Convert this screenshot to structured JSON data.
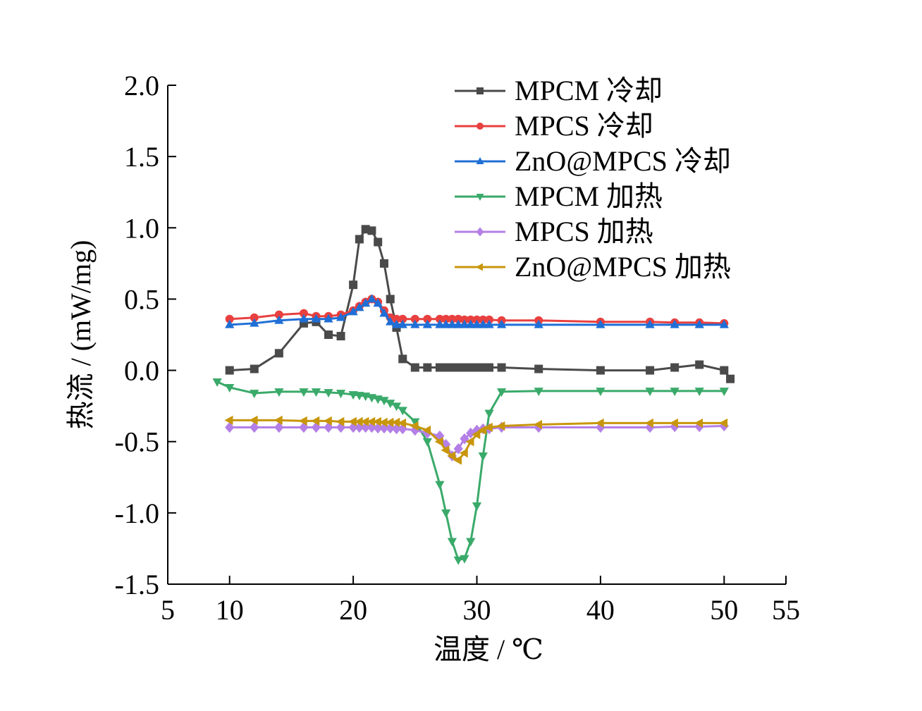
{
  "chart_data": {
    "type": "line",
    "xlabel": "温度 / ℃",
    "ylabel": "热流 / (mW/mg)",
    "x": [
      9,
      10,
      12,
      14,
      16,
      17,
      18,
      19,
      20,
      20.5,
      21,
      21.5,
      22,
      22.5,
      23,
      23.5,
      24,
      25,
      26,
      27,
      27.5,
      28,
      28.5,
      29,
      29.5,
      30,
      30.5,
      31,
      32,
      35,
      40,
      44,
      46,
      48,
      50,
      50.5
    ],
    "series": [
      {
        "name": "MPCM 冷却",
        "color": "#4a4a4a",
        "marker": "square",
        "values": [
          null,
          0.0,
          0.01,
          0.12,
          0.33,
          0.34,
          0.25,
          0.24,
          0.6,
          0.92,
          0.99,
          0.98,
          0.9,
          0.75,
          0.5,
          0.3,
          0.08,
          0.02,
          0.02,
          0.02,
          0.02,
          0.02,
          0.02,
          0.02,
          0.02,
          0.02,
          0.02,
          0.02,
          0.02,
          0.01,
          0.0,
          0.0,
          0.02,
          0.04,
          0.0,
          -0.06
        ]
      },
      {
        "name": "MPCS 冷却",
        "color": "#e8403f",
        "marker": "circle",
        "values": [
          null,
          0.36,
          0.37,
          0.39,
          0.4,
          0.38,
          0.38,
          0.39,
          0.42,
          0.45,
          0.48,
          0.5,
          0.48,
          0.42,
          0.37,
          0.36,
          0.36,
          0.36,
          0.36,
          0.36,
          0.36,
          0.36,
          0.36,
          0.355,
          0.355,
          0.355,
          0.355,
          0.355,
          0.35,
          0.35,
          0.34,
          0.34,
          0.335,
          0.335,
          0.33,
          null
        ]
      },
      {
        "name": "ZnO@MPCS 冷却",
        "color": "#1f6fd6",
        "marker": "triangle-up",
        "values": [
          null,
          0.32,
          0.33,
          0.35,
          0.36,
          0.36,
          0.36,
          0.37,
          0.41,
          0.44,
          0.47,
          0.5,
          0.47,
          0.4,
          0.34,
          0.32,
          0.32,
          0.32,
          0.32,
          0.32,
          0.32,
          0.32,
          0.32,
          0.32,
          0.32,
          0.32,
          0.32,
          0.32,
          0.32,
          0.32,
          0.32,
          0.32,
          0.32,
          0.32,
          0.32,
          null
        ]
      },
      {
        "name": "MPCM 加热",
        "color": "#3aaa6a",
        "marker": "triangle-down",
        "values": [
          -0.08,
          -0.12,
          -0.16,
          -0.15,
          -0.15,
          -0.15,
          -0.155,
          -0.16,
          -0.17,
          -0.175,
          -0.18,
          -0.19,
          -0.2,
          -0.21,
          -0.23,
          -0.25,
          -0.28,
          -0.36,
          -0.5,
          -0.8,
          -1.0,
          -1.2,
          -1.33,
          -1.32,
          -1.2,
          -0.95,
          -0.6,
          -0.3,
          -0.15,
          -0.145,
          -0.145,
          -0.145,
          -0.145,
          -0.145,
          -0.145,
          null
        ]
      },
      {
        "name": "MPCS 加热",
        "color": "#b47fe6",
        "marker": "diamond",
        "values": [
          null,
          -0.4,
          -0.4,
          -0.4,
          -0.4,
          -0.4,
          -0.4,
          -0.4,
          -0.4,
          -0.4,
          -0.4,
          -0.4,
          -0.405,
          -0.405,
          -0.405,
          -0.41,
          -0.41,
          -0.42,
          -0.44,
          -0.46,
          -0.52,
          -0.6,
          -0.55,
          -0.48,
          -0.44,
          -0.42,
          -0.41,
          -0.41,
          -0.4,
          -0.4,
          -0.4,
          -0.4,
          -0.395,
          -0.395,
          -0.39,
          null
        ]
      },
      {
        "name": "ZnO@MPCS 加热",
        "color": "#c8960c",
        "marker": "triangle-left",
        "values": [
          null,
          -0.35,
          -0.35,
          -0.35,
          -0.355,
          -0.355,
          -0.355,
          -0.36,
          -0.36,
          -0.36,
          -0.36,
          -0.36,
          -0.36,
          -0.365,
          -0.365,
          -0.365,
          -0.37,
          -0.39,
          -0.42,
          -0.5,
          -0.56,
          -0.6,
          -0.63,
          -0.58,
          -0.5,
          -0.45,
          -0.42,
          -0.4,
          -0.39,
          -0.38,
          -0.37,
          -0.37,
          -0.37,
          -0.37,
          -0.37,
          null
        ]
      }
    ],
    "xlim": [
      5,
      55
    ],
    "xticks": [
      5,
      10,
      20,
      30,
      40,
      50,
      55
    ],
    "ylim": [
      -1.5,
      2.0
    ],
    "yticks": [
      -1.5,
      {
        "value": -1,
        "label": "-1.0"
      },
      -0.5,
      {
        "value": 0,
        "label": "0.0"
      },
      0.5,
      {
        "value": 1,
        "label": "1.0"
      },
      1.5,
      {
        "value": 2,
        "label": "2.0"
      }
    ],
    "legend": "upper right",
    "grid": false
  }
}
